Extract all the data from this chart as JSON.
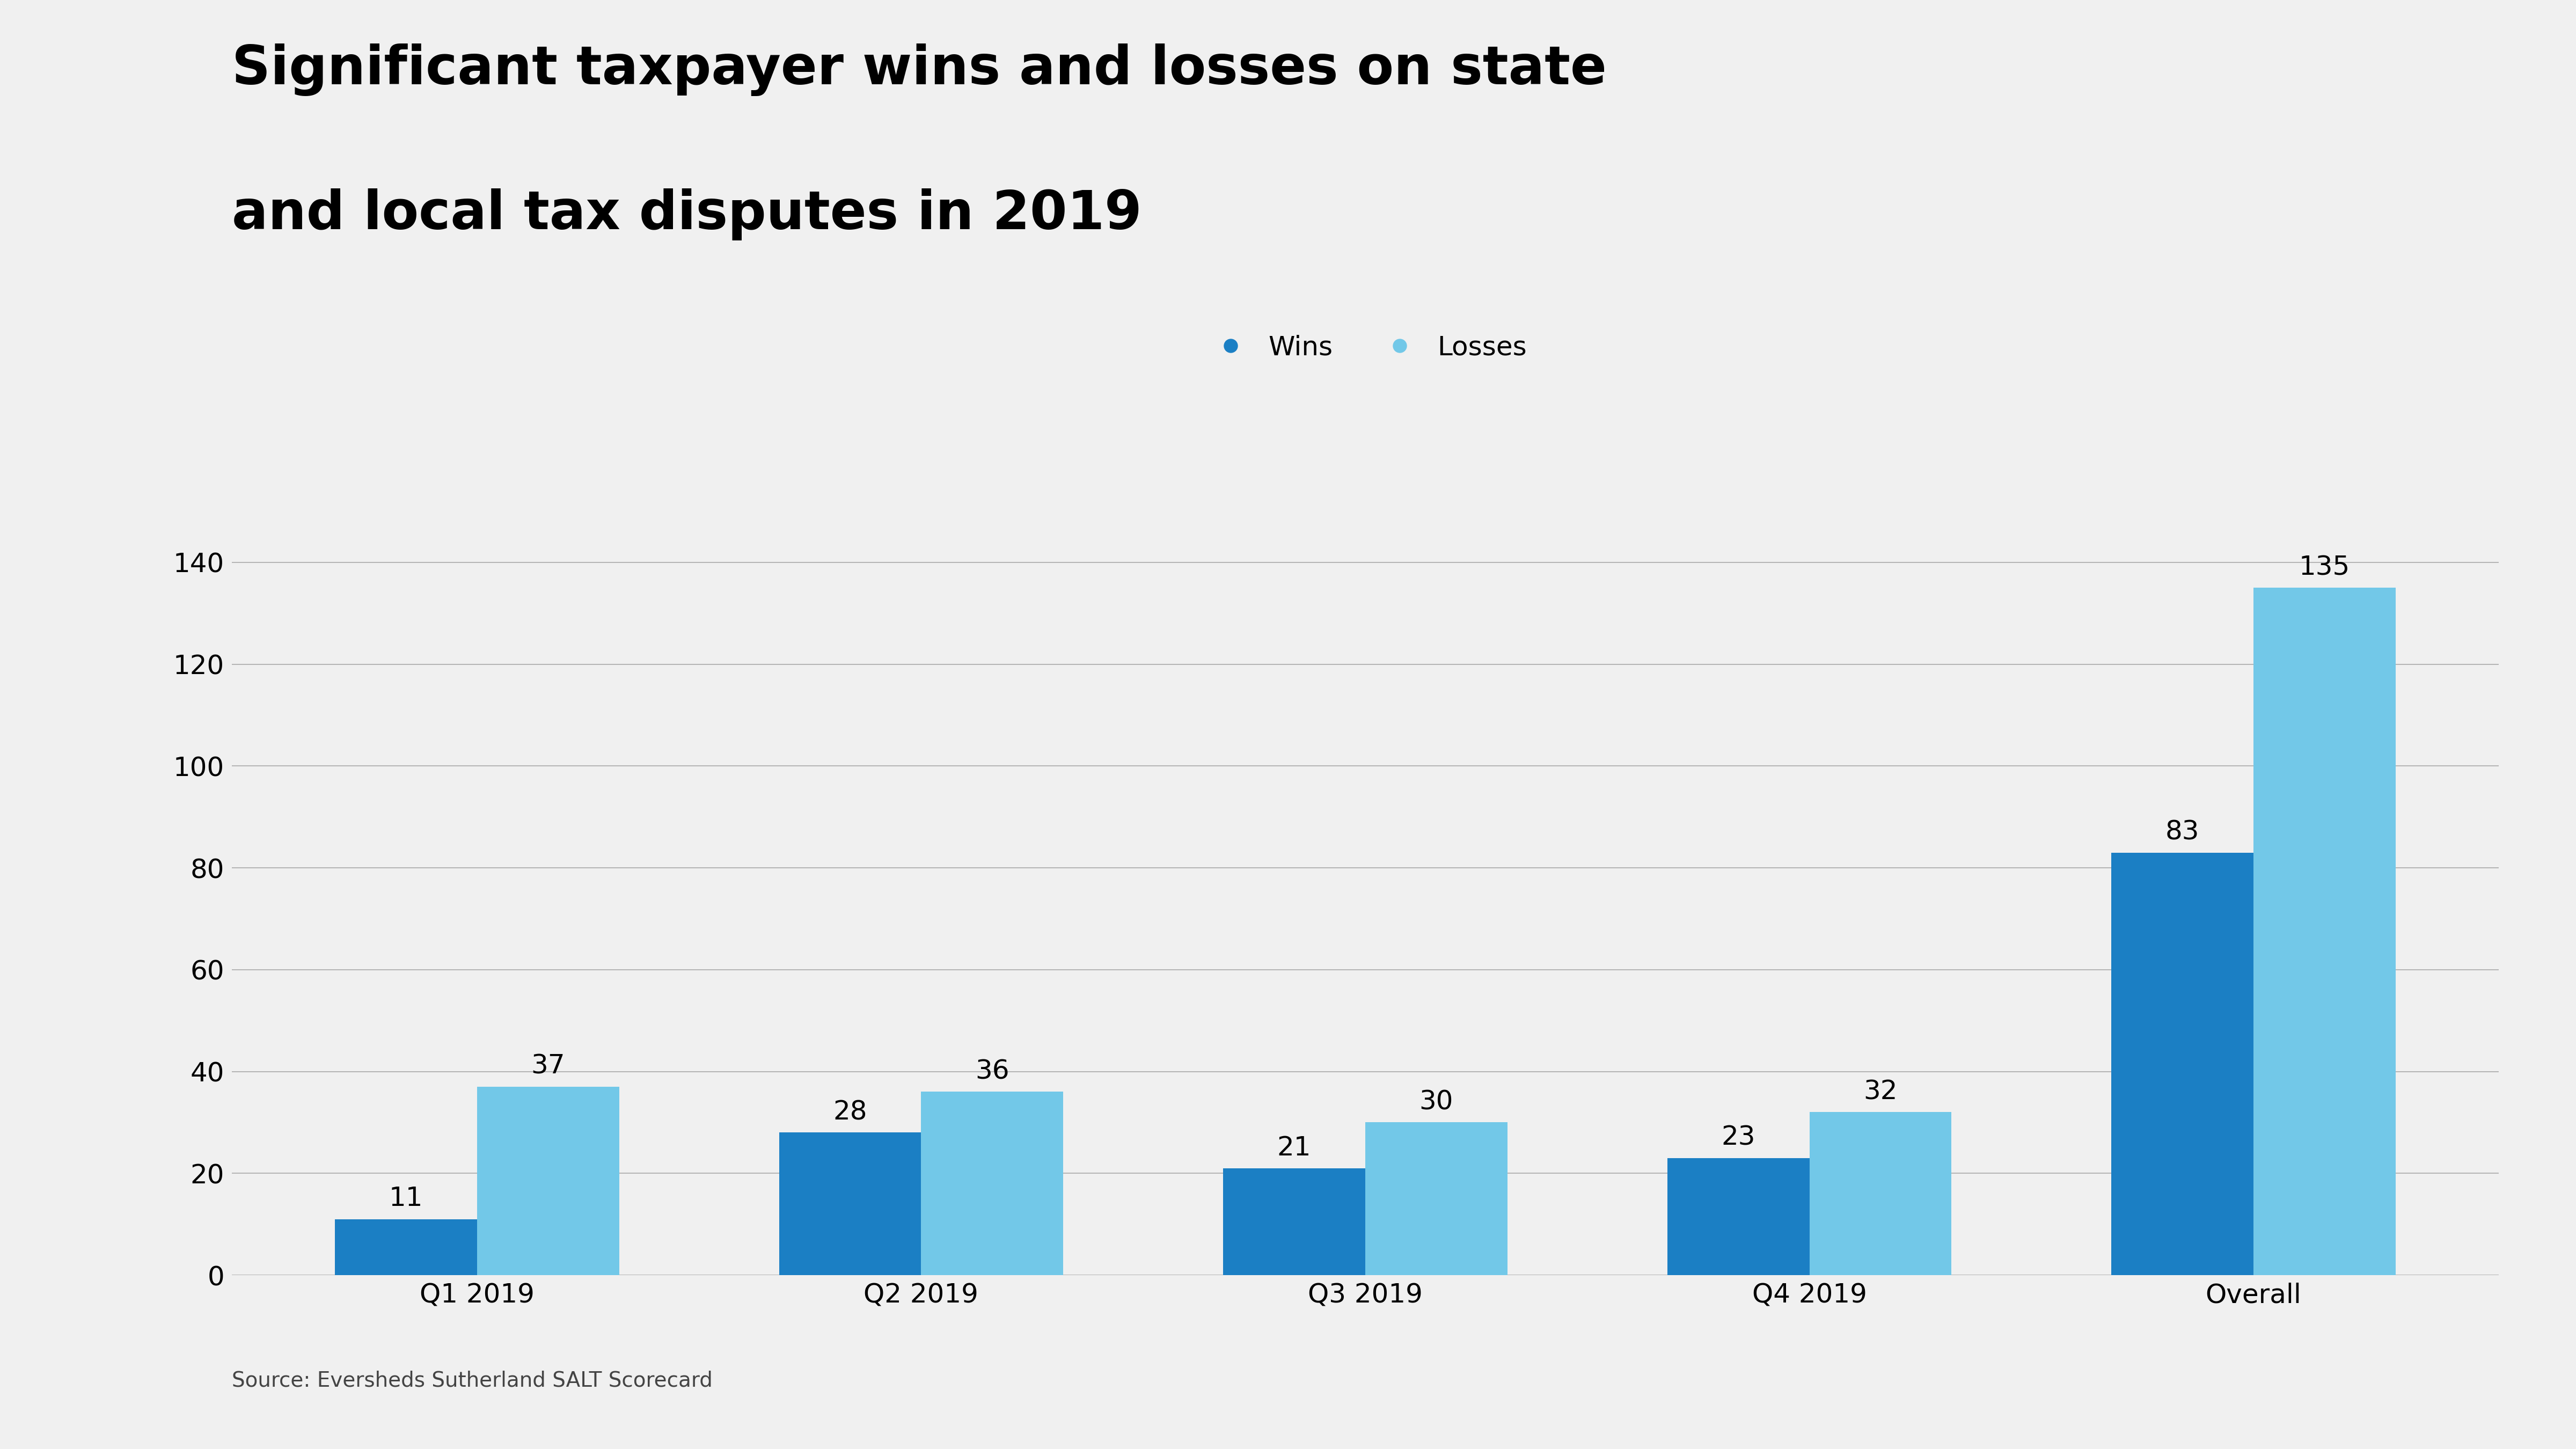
{
  "title_line1": "Significant taxpayer wins and losses on state",
  "title_line2": "and local tax disputes in 2019",
  "categories": [
    "Q1 2019",
    "Q2 2019",
    "Q3 2019",
    "Q4 2019",
    "Overall"
  ],
  "wins": [
    11,
    28,
    21,
    23,
    83
  ],
  "losses": [
    37,
    36,
    30,
    32,
    135
  ],
  "wins_color": "#1b7fc4",
  "losses_color": "#72c8e8",
  "background_color": "#f0f0f0",
  "legend_wins_label": "Wins",
  "legend_losses_label": "Losses",
  "source_text": "Source: Eversheds Sutherland SALT Scorecard",
  "ylim": [
    0,
    148
  ],
  "yticks": [
    0,
    20,
    40,
    60,
    80,
    100,
    120,
    140
  ],
  "title_fontsize": 72,
  "tick_fontsize": 36,
  "bar_annotation_fontsize": 36,
  "source_fontsize": 28,
  "legend_fontsize": 36,
  "grid_color": "#aaaaaa",
  "grid_linewidth": 1.2
}
